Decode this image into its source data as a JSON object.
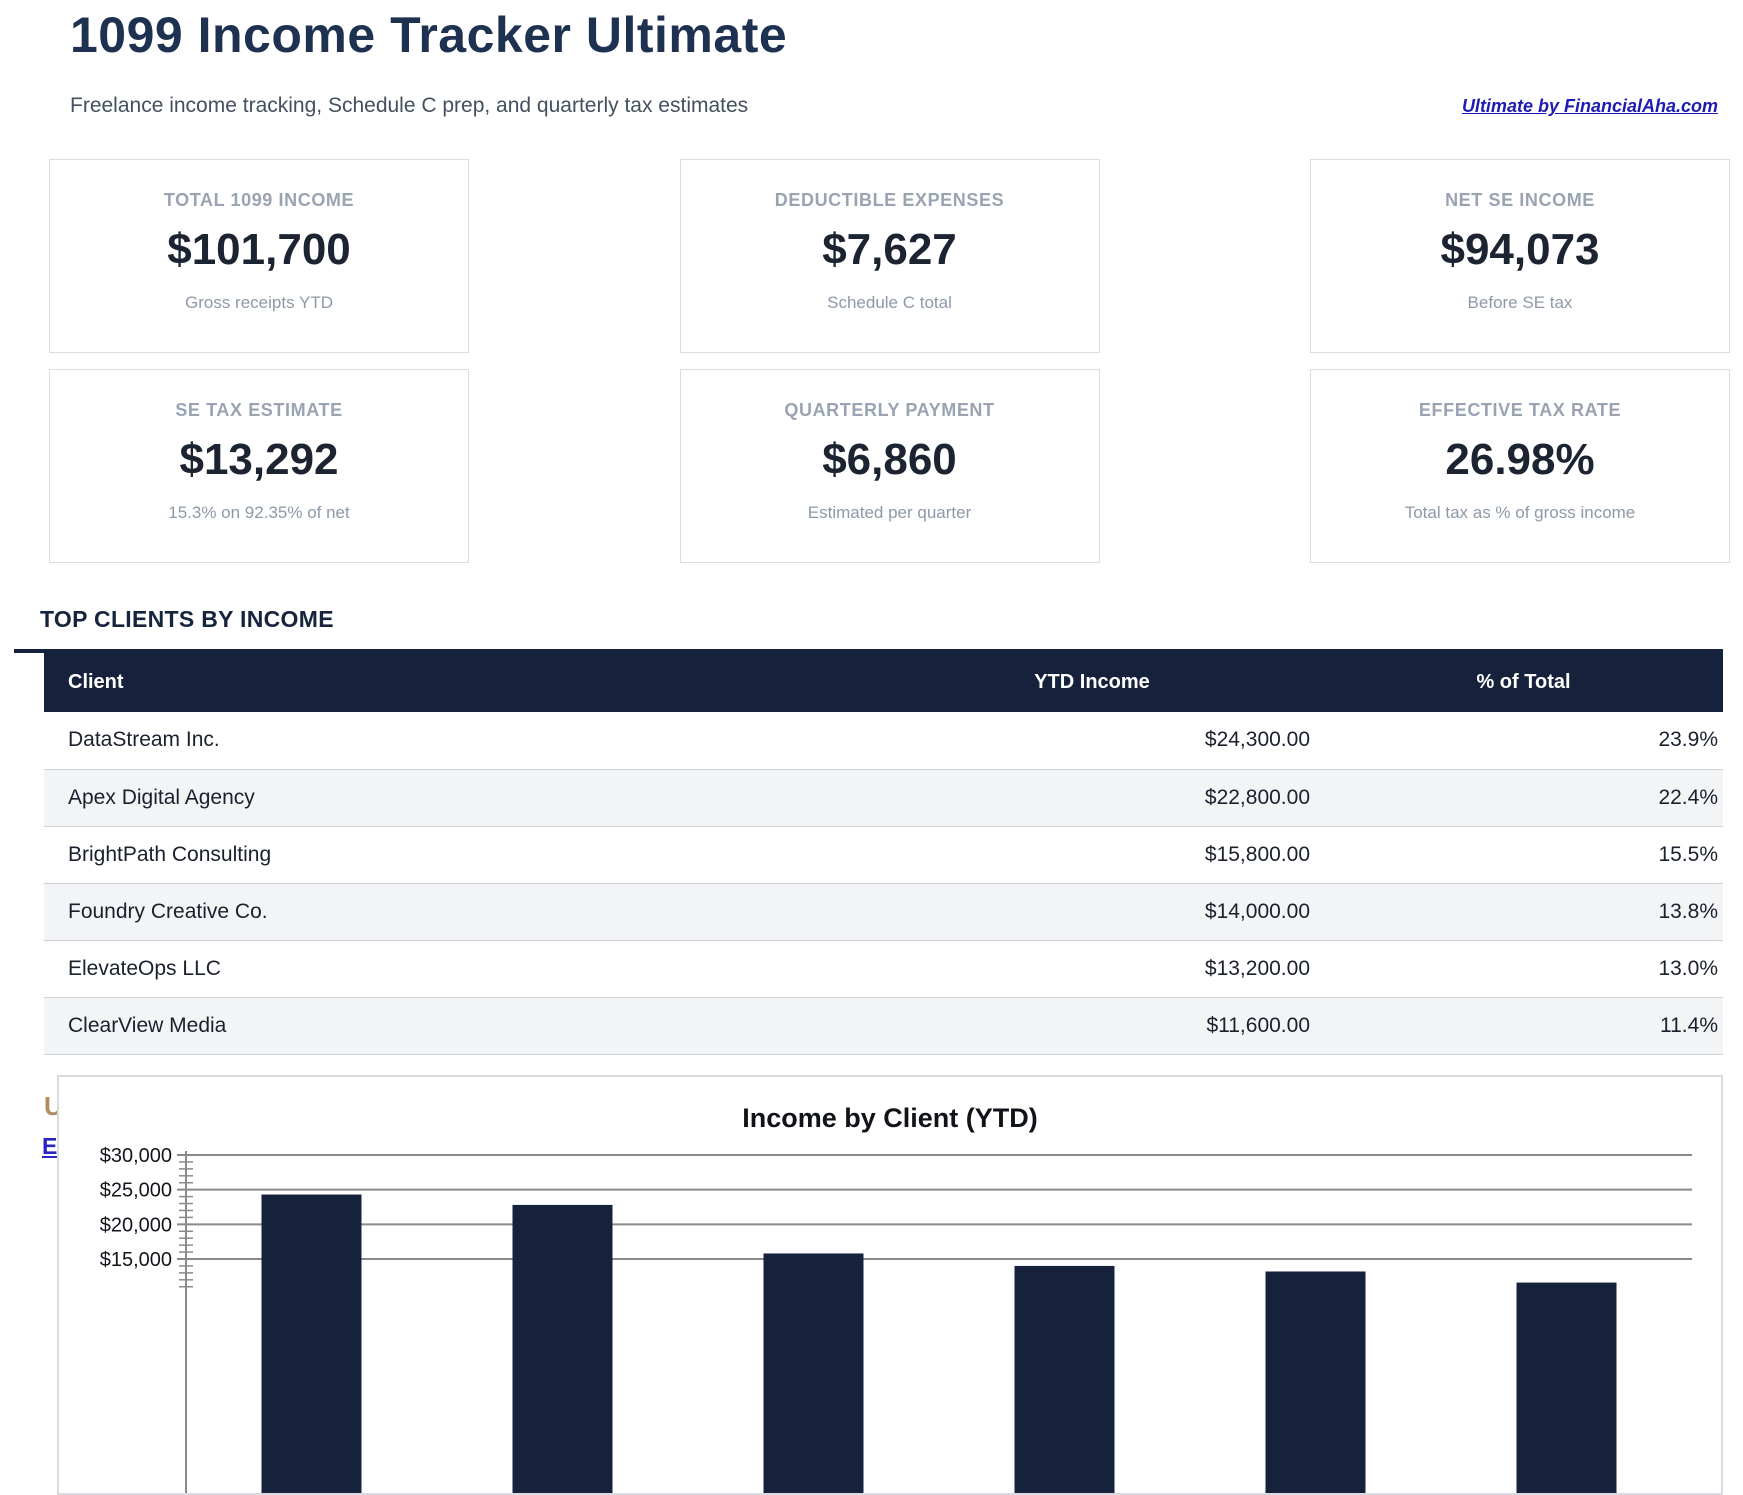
{
  "page": {
    "title": "1099 Income Tracker Ultimate",
    "subtitle": "Freelance income tracking, Schedule C prep, and quarterly tax estimates",
    "link": "Ultimate by FinancialAha.com"
  },
  "stats": [
    {
      "label": "TOTAL 1099 INCOME",
      "value": "$101,700",
      "sub": "Gross receipts YTD"
    },
    {
      "label": "DEDUCTIBLE EXPENSES",
      "value": "$7,627",
      "sub": "Schedule C total"
    },
    {
      "label": "NET SE INCOME",
      "value": "$94,073",
      "sub": "Before SE tax"
    },
    {
      "label": "SE TAX ESTIMATE",
      "value": "$13,292",
      "sub": "15.3% on 92.35% of net"
    },
    {
      "label": "QUARTERLY PAYMENT",
      "value": "$6,860",
      "sub": "Estimated per quarter"
    },
    {
      "label": "EFFECTIVE TAX RATE",
      "value": "26.98%",
      "sub": "Total tax as % of gross income"
    }
  ],
  "clients_section": {
    "heading": "TOP CLIENTS BY INCOME",
    "columns": [
      "Client",
      "YTD Income",
      "% of Total"
    ],
    "rows": [
      {
        "client": "DataStream Inc.",
        "ytd": "$24,300.00",
        "pct": "23.9%"
      },
      {
        "client": "Apex Digital Agency",
        "ytd": "$22,800.00",
        "pct": "22.4%"
      },
      {
        "client": "BrightPath Consulting",
        "ytd": "$15,800.00",
        "pct": "15.5%"
      },
      {
        "client": "Foundry Creative Co.",
        "ytd": "$14,000.00",
        "pct": "13.8%"
      },
      {
        "client": "ElevateOps LLC",
        "ytd": "$13,200.00",
        "pct": "13.0%"
      },
      {
        "client": "ClearView Media",
        "ytd": "$11,600.00",
        "pct": "11.4%"
      }
    ]
  },
  "background_fragments": {
    "fragment1": "U",
    "fragment2": "E"
  },
  "colors": {
    "navy": "#16213c",
    "title_navy": "#1e3150",
    "link_blue": "#1f1cb4",
    "label_gray": "#9aa3b2",
    "sub_gray": "#8e99a8",
    "alt_row": "#f2f4f6",
    "grid_gray": "#8a8a8a",
    "fragment_tan": "#b08d5f",
    "fragment_blue": "#2a24c0"
  },
  "chart_data": {
    "type": "bar",
    "title": "Income by Client (YTD)",
    "categories": [
      "DataStream Inc.",
      "Apex Digital Agency",
      "BrightPath Consulting",
      "Foundry Creative Co.",
      "ElevateOps LLC",
      "ClearView Media"
    ],
    "values": [
      24300,
      22800,
      15800,
      14000,
      13200,
      11600
    ],
    "y_ticks": [
      {
        "value": 30000,
        "label": "$30,000"
      },
      {
        "value": 25000,
        "label": "$25,000"
      },
      {
        "value": 20000,
        "label": "$20,000"
      },
      {
        "value": 15000,
        "label": "$15,000"
      }
    ],
    "minor_tick_step": 1000,
    "visible_y_range": [
      15000,
      30000
    ],
    "bar_color": "#16213c",
    "grid": true,
    "legend": false
  }
}
